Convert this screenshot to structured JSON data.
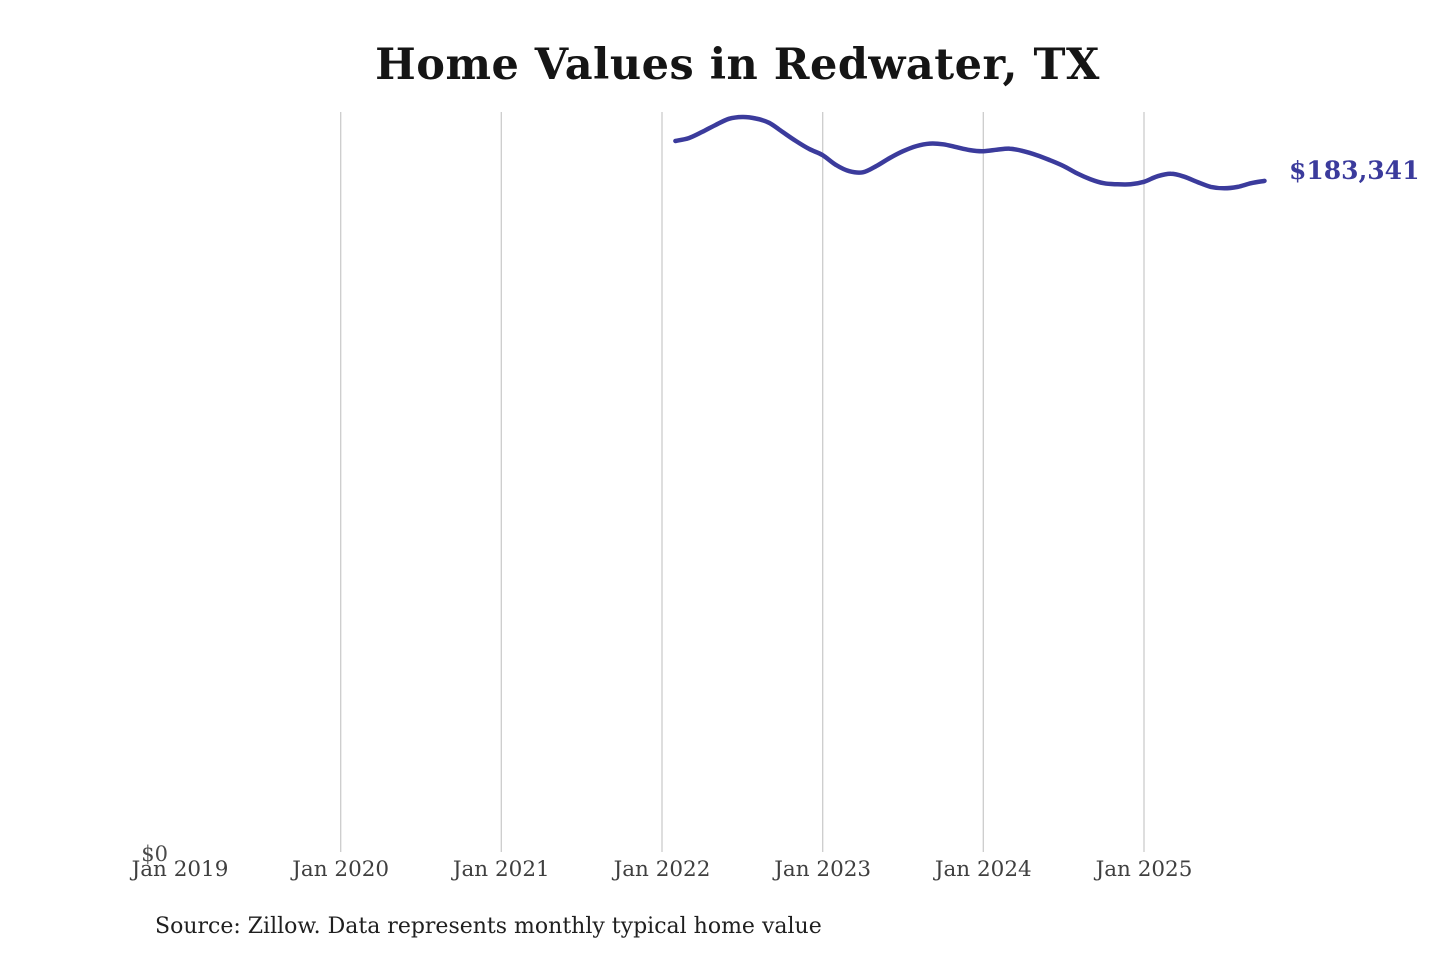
{
  "page": {
    "background": "#ffffff"
  },
  "header": {
    "title": "Home Values in Redwater, TX"
  },
  "footer": {
    "source_note": "Source: Zillow. Data represents monthly typical home value"
  },
  "colors": {
    "line": "#3b3b9c",
    "end_label_text": "#3b3b9c",
    "gridline": "#cccccc",
    "axis_text": "#3f3f3f",
    "title_text": "#151515",
    "background": "#ffffff"
  },
  "chart_data": {
    "type": "line",
    "title": "Home Values in Redwater, TX",
    "xlabel": "",
    "ylabel": "",
    "ylim": [
      0,
      202000
    ],
    "grid": "vertical-only",
    "legend": "none",
    "y_axis": {
      "zero_label": "$0"
    },
    "x_ticks": [
      {
        "label": "Jan 2019",
        "months_since_jan2019": 0,
        "gridline": false
      },
      {
        "label": "Jan 2020",
        "months_since_jan2019": 12,
        "gridline": true
      },
      {
        "label": "Jan 2021",
        "months_since_jan2019": 24,
        "gridline": true
      },
      {
        "label": "Jan 2022",
        "months_since_jan2019": 36,
        "gridline": true
      },
      {
        "label": "Jan 2023",
        "months_since_jan2019": 48,
        "gridline": true
      },
      {
        "label": "Jan 2024",
        "months_since_jan2019": 60,
        "gridline": true
      },
      {
        "label": "Jan 2025",
        "months_since_jan2019": 72,
        "gridline": true
      }
    ],
    "series": [
      {
        "name": "Monthly typical home value",
        "color": "#3b3b9c",
        "frequency": "monthly",
        "start_month": "Feb 2022",
        "end_month": "Oct 2025",
        "start_months_since_jan2019": 37,
        "values": [
          194300,
          195100,
          196800,
          198700,
          200400,
          200900,
          200500,
          199300,
          196800,
          194300,
          192100,
          190400,
          187700,
          186000,
          185700,
          187400,
          189600,
          191500,
          192900,
          193600,
          193400,
          192600,
          191800,
          191500,
          191900,
          192200,
          191500,
          190400,
          189000,
          187400,
          185400,
          183800,
          182700,
          182400,
          182400,
          183100,
          184600,
          185300,
          184500,
          183000,
          181700,
          181300,
          181700,
          182700,
          183341
        ]
      }
    ],
    "end_value": 183341,
    "end_label": "$183,341"
  }
}
